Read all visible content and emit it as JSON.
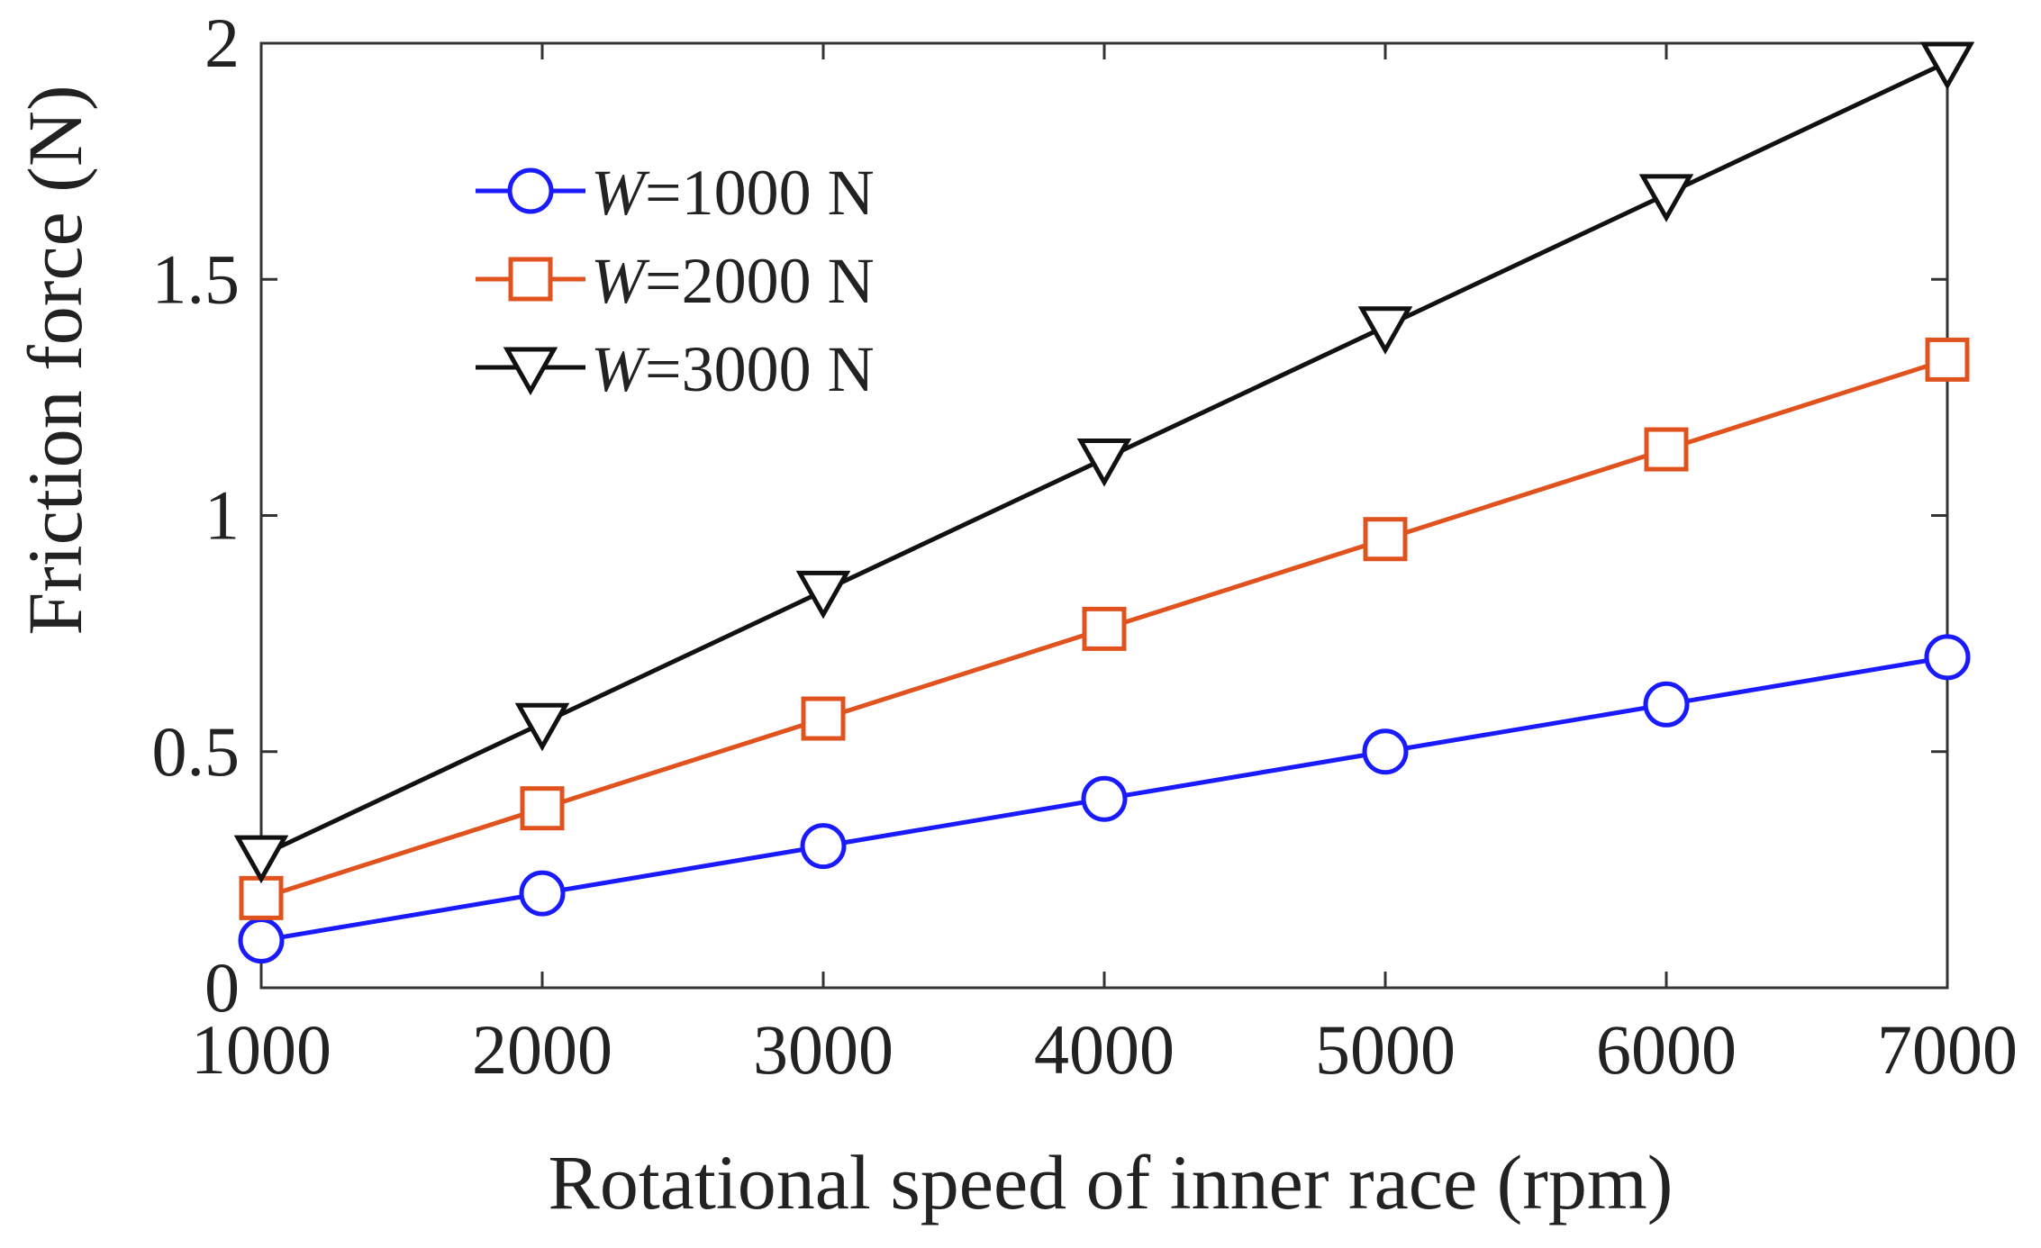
{
  "chart_data": {
    "type": "line",
    "xlabel": "Rotational speed of inner race (rpm)",
    "ylabel": "Friction force (N)",
    "x": [
      1000,
      2000,
      3000,
      4000,
      5000,
      6000,
      7000
    ],
    "xlim": [
      1000,
      7000
    ],
    "ylim": [
      0,
      2
    ],
    "xticks": [
      "1000",
      "2000",
      "3000",
      "4000",
      "5000",
      "6000",
      "7000"
    ],
    "yticks": [
      "0",
      "0.5",
      "1",
      "1.5",
      "2"
    ],
    "grid": false,
    "legend_position": "top-left",
    "series": [
      {
        "name": "=1000 N",
        "name_prefix": "W",
        "color": "#1a1aff",
        "marker": "circle",
        "values": [
          0.1,
          0.2,
          0.3,
          0.4,
          0.5,
          0.6,
          0.7
        ]
      },
      {
        "name": "=2000 N",
        "name_prefix": "W",
        "color": "#e0521e",
        "marker": "square",
        "values": [
          0.19,
          0.38,
          0.57,
          0.76,
          0.95,
          1.14,
          1.33
        ]
      },
      {
        "name": "=3000 N",
        "name_prefix": "W",
        "color": "#111111",
        "marker": "triangle-down",
        "values": [
          0.28,
          0.56,
          0.84,
          1.12,
          1.4,
          1.68,
          1.96
        ]
      }
    ]
  }
}
